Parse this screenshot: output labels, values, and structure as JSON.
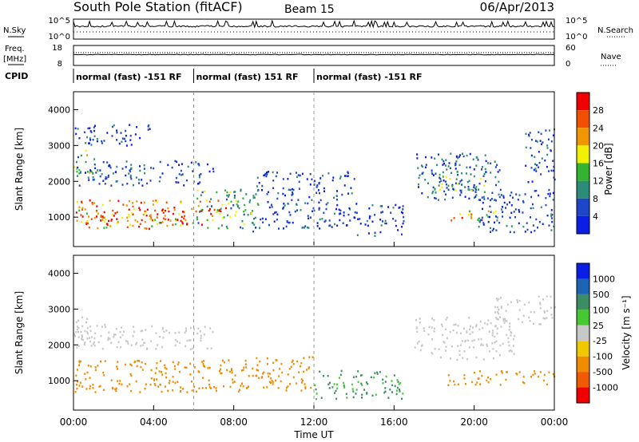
{
  "header": {
    "title": "South Pole Station (fitACF)",
    "beam": "Beam 15",
    "date": "06/Apr/2013"
  },
  "summary": {
    "nsky_label": "N.Sky",
    "nsky_ticks": [
      "10^5",
      "10^0"
    ],
    "nsearch_label": "N.Search",
    "nsearch_ticks": [
      "10^5",
      "10^0"
    ],
    "freq_label_1": "Freq.",
    "freq_label_2": "[MHz]",
    "freq_ticks": [
      "18",
      "8"
    ],
    "nave_label": "Nave",
    "nave_ticks": [
      "60",
      "0"
    ],
    "cpid_label": "CPID",
    "cpid_segments": [
      {
        "label": "normal (fast) -151 RF",
        "start_hour": 0,
        "end_hour": 6
      },
      {
        "label": "normal (fast) 151 RF",
        "start_hour": 6,
        "end_hour": 12
      },
      {
        "label": "normal (fast) -151 RF",
        "start_hour": 12,
        "end_hour": 24
      }
    ]
  },
  "x_axis": {
    "label": "Time UT",
    "ticks": [
      "00:00",
      "04:00",
      "08:00",
      "12:00",
      "16:00",
      "20:00",
      "00:00"
    ]
  },
  "y_axis": {
    "label": "Slant Range [km]",
    "ticks": [
      "1000",
      "2000",
      "3000",
      "4000"
    ]
  },
  "power_colorbar": {
    "label": "Power [dB]",
    "ticks": [
      "4",
      "8",
      "12",
      "16",
      "20",
      "24",
      "28"
    ],
    "colors": [
      "#0a1ee6",
      "#1e46c8",
      "#2d8c78",
      "#32b432",
      "#f0f000",
      "#f09600",
      "#f05000",
      "#f00000"
    ]
  },
  "velocity_colorbar": {
    "label": "Velocity [m s⁻¹]",
    "ticks": [
      "1000",
      "500",
      "100",
      "25",
      "-25",
      "-100",
      "-500",
      "-1000"
    ],
    "colors": [
      "#0a1ee6",
      "#1e64b4",
      "#3c8c64",
      "#46c832",
      "#c8c8c8",
      "#f0c800",
      "#f08c00",
      "#f05a00",
      "#f00000"
    ]
  },
  "chart_data": [
    {
      "type": "heatmap",
      "name": "Power",
      "xlabel": "Time UT",
      "ylabel": "Slant Range [km]",
      "xlim_hours": [
        0,
        24
      ],
      "ylim_km": [
        180,
        4500
      ],
      "colorbar": "Power [dB]",
      "regions": [
        {
          "t0": 0.0,
          "t1": 6.4,
          "r0": 700,
          "r1": 1500,
          "value": 24
        },
        {
          "t0": 1.2,
          "t1": 5.8,
          "r0": 800,
          "r1": 1300,
          "value": 28
        },
        {
          "t0": 0.0,
          "t1": 1.2,
          "r0": 2200,
          "r1": 2900,
          "value": 14
        },
        {
          "t0": 0.0,
          "t1": 7.0,
          "r0": 1900,
          "r1": 2600,
          "value": 6
        },
        {
          "t0": 0.0,
          "t1": 4.0,
          "r0": 3000,
          "r1": 3600,
          "value": 5
        },
        {
          "t0": 6.0,
          "t1": 9.2,
          "r0": 600,
          "r1": 1800,
          "value": 12
        },
        {
          "t0": 6.2,
          "t1": 7.6,
          "r0": 1000,
          "r1": 1500,
          "value": 26
        },
        {
          "t0": 9.0,
          "t1": 14.0,
          "r0": 700,
          "r1": 2300,
          "value": 5
        },
        {
          "t0": 14.0,
          "t1": 16.5,
          "r0": 500,
          "r1": 1400,
          "value": 5
        },
        {
          "t0": 17.0,
          "t1": 21.5,
          "r0": 1500,
          "r1": 2800,
          "value": 7
        },
        {
          "t0": 17.5,
          "t1": 20.5,
          "r0": 1700,
          "r1": 2300,
          "value": 12
        },
        {
          "t0": 18.5,
          "t1": 21.2,
          "r0": 900,
          "r1": 1200,
          "value": 22
        },
        {
          "t0": 20.0,
          "t1": 24.0,
          "r0": 600,
          "r1": 1800,
          "value": 6
        },
        {
          "t0": 22.5,
          "t1": 24.0,
          "r0": 2000,
          "r1": 3500,
          "value": 6
        }
      ]
    },
    {
      "type": "heatmap",
      "name": "Velocity",
      "xlabel": "Time UT",
      "ylabel": "Slant Range [km]",
      "xlim_hours": [
        0,
        24
      ],
      "ylim_km": [
        180,
        4500
      ],
      "colorbar": "Velocity [m s⁻¹]",
      "regions": [
        {
          "t0": 0.0,
          "t1": 9.0,
          "r0": 700,
          "r1": 1600,
          "value": -200
        },
        {
          "t0": 0.0,
          "t1": 1.2,
          "r0": 2200,
          "r1": 2800,
          "value": 0
        },
        {
          "t0": 0.0,
          "t1": 7.0,
          "r0": 1900,
          "r1": 2600,
          "value": 0
        },
        {
          "t0": 9.0,
          "t1": 12.0,
          "r0": 700,
          "r1": 1700,
          "value": -150
        },
        {
          "t0": 12.0,
          "t1": 16.5,
          "r0": 500,
          "r1": 1300,
          "value": 120
        },
        {
          "t0": 17.0,
          "t1": 22.0,
          "r0": 1600,
          "r1": 2800,
          "value": 0
        },
        {
          "t0": 18.5,
          "t1": 24.0,
          "r0": 900,
          "r1": 1300,
          "value": -200
        },
        {
          "t0": 21.0,
          "t1": 24.0,
          "r0": 2600,
          "r1": 3400,
          "value": 0
        }
      ]
    }
  ]
}
